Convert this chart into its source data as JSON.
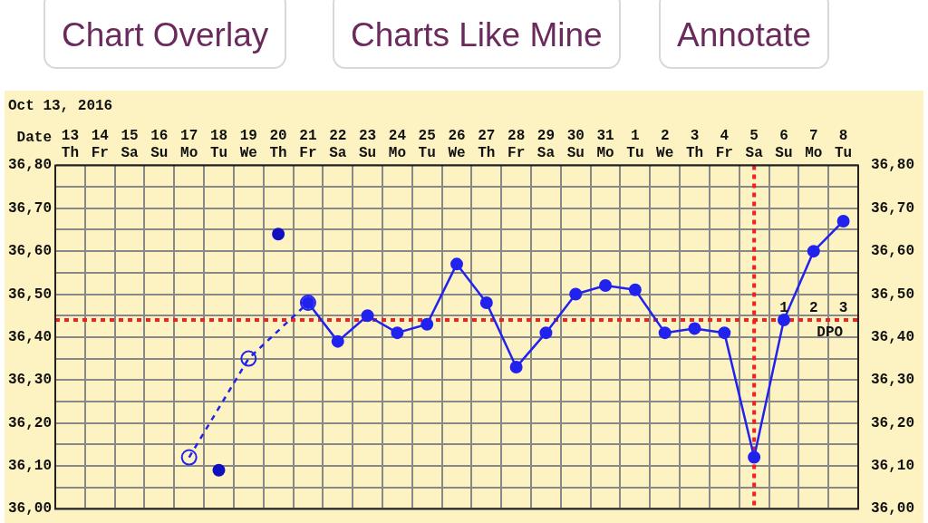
{
  "chart_data": {
    "type": "line",
    "subtitle": "Oct 13, 2016",
    "xlabel": "Date",
    "categories": [
      "13\nTh",
      "14\nFr",
      "15\nSa",
      "16\nSu",
      "17\nMo",
      "18\nTu",
      "19\nWe",
      "20\nTh",
      "21\nFr",
      "22\nSa",
      "23\nSu",
      "24\nMo",
      "25\nTu",
      "26\nWe",
      "27\nTh",
      "28\nFr",
      "29\nSa",
      "30\nSu",
      "31\nMo",
      "1\nTu",
      "2\nWe",
      "3\nTh",
      "4\nFr",
      "5\nSa",
      "6\nSu",
      "7\nMo",
      "8\nTu"
    ],
    "series": [
      {
        "color": "#2222ee",
        "line_style": "dashed",
        "values": [
          null,
          null,
          null,
          null,
          36.12,
          null,
          36.35,
          null,
          36.48,
          null,
          null,
          null,
          null,
          null,
          null,
          null,
          null,
          null,
          null,
          null,
          null,
          null,
          null,
          null,
          null,
          null,
          null
        ]
      },
      {
        "color": "#2222ee",
        "line_style": "solid",
        "values": [
          null,
          null,
          null,
          null,
          null,
          null,
          null,
          null,
          36.48,
          36.39,
          36.45,
          36.41,
          36.43,
          36.57,
          36.48,
          36.33,
          36.41,
          36.5,
          36.52,
          36.51,
          36.41,
          36.42,
          36.41,
          36.12,
          36.44,
          36.6,
          36.67
        ]
      },
      {
        "type": "scatter",
        "color": "#1010c0",
        "values": [
          null,
          null,
          null,
          null,
          null,
          36.09,
          null,
          36.64,
          null,
          null,
          null,
          null,
          null,
          null,
          null,
          null,
          null,
          null,
          null,
          null,
          null,
          null,
          null,
          null,
          null,
          null,
          null
        ]
      }
    ],
    "marker": "circle",
    "ylim": [
      36.0,
      36.8
    ],
    "yticks": [
      {
        "value": 36.0,
        "label": "36,00"
      },
      {
        "value": 36.05,
        "label": null
      },
      {
        "value": 36.1,
        "label": "36,10"
      },
      {
        "value": 36.15,
        "label": null
      },
      {
        "value": 36.2,
        "label": "36,20"
      },
      {
        "value": 36.25,
        "label": null
      },
      {
        "value": 36.3,
        "label": "36,30"
      },
      {
        "value": 36.35,
        "label": null
      },
      {
        "value": 36.4,
        "label": "36,40"
      },
      {
        "value": 36.45,
        "label": null
      },
      {
        "value": 36.5,
        "label": "36,50"
      },
      {
        "value": 36.55,
        "label": null
      },
      {
        "value": 36.6,
        "label": "36,60"
      },
      {
        "value": 36.65,
        "label": null
      },
      {
        "value": 36.7,
        "label": "36,70"
      },
      {
        "value": 36.75,
        "label": null
      },
      {
        "value": 36.8,
        "label": "36,80"
      }
    ],
    "y2lim": [
      36.0,
      36.8
    ],
    "y2ticks": [
      {
        "value": 36.0,
        "label": "36,00"
      },
      {
        "value": 36.1,
        "label": "36,10"
      },
      {
        "value": 36.2,
        "label": "36,20"
      },
      {
        "value": 36.3,
        "label": "36,30"
      },
      {
        "value": 36.4,
        "label": "36,40"
      },
      {
        "value": 36.5,
        "label": "36,50"
      },
      {
        "value": 36.6,
        "label": "36,60"
      },
      {
        "value": 36.7,
        "label": "36,70"
      },
      {
        "value": 36.8,
        "label": "36,80"
      }
    ],
    "ref_lines": [
      {
        "axis": "y",
        "value": 36.44,
        "color": "#ee2222",
        "line_style": "dotted"
      },
      {
        "axis": "x",
        "value": "5\nSa",
        "color": "#ee2222",
        "line_style": "dotted"
      }
    ],
    "annotations": [
      "Chart Overlay",
      "Charts Like Mine",
      "Annotate",
      {
        "text": "1",
        "x": "6\nSu",
        "y": 36.44
      },
      {
        "text": "2",
        "x": "7\nMo",
        "y": 36.44
      },
      {
        "text": "3",
        "x": "8\nTu",
        "y": 36.44
      },
      "DPO"
    ],
    "grid": true,
    "legend": false
  }
}
